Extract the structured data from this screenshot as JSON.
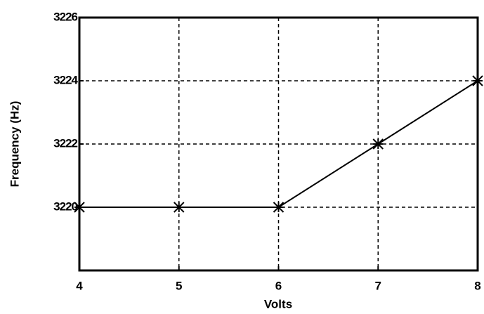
{
  "chart_data": {
    "type": "line",
    "x": [
      4,
      5,
      6,
      7,
      8
    ],
    "series": [
      {
        "color": "#000000",
        "values": [
          3220,
          3220,
          3220,
          3222,
          3224
        ]
      }
    ],
    "xlabel": "Volts",
    "ylabel": "Frequency (Hz)",
    "xlim": [
      4,
      8
    ],
    "xticks": [
      4,
      5,
      6,
      7,
      8
    ],
    "ylim": [
      3218,
      3226
    ],
    "yticks": [
      3220,
      3222,
      3224,
      3226
    ],
    "grid": true,
    "marker": "asterisk"
  }
}
